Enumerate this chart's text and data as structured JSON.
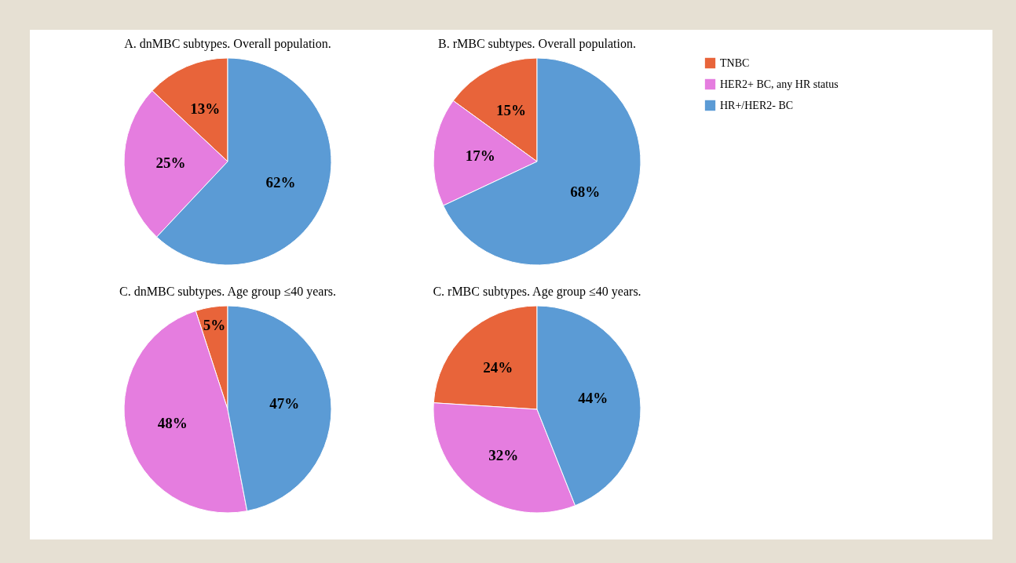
{
  "chart_data": [
    {
      "type": "pie",
      "title": "A. dnMBC subtypes. Overall population.",
      "categories": [
        "TNBC",
        "HER2+ BC, any HR status",
        "HR+/HER2- BC"
      ],
      "values": [
        13,
        25,
        62
      ],
      "colors": [
        "#e8643a",
        "#e57ddf",
        "#5b9bd5"
      ],
      "value_labels": [
        "13%",
        "25%",
        "62%"
      ],
      "legend": "right"
    },
    {
      "type": "pie",
      "title": "B. rMBC subtypes. Overall population.",
      "categories": [
        null,
        null,
        null
      ],
      "values": [
        15,
        17,
        68
      ],
      "colors": [
        "#e8643a",
        "#e57ddf",
        "#5b9bd5"
      ],
      "value_labels": [
        "15%",
        "17%",
        "68%"
      ]
    },
    {
      "type": "pie",
      "title": "C. dnMBC subtypes. Age group ≤40 years.",
      "categories": [
        null,
        null,
        null
      ],
      "values": [
        5,
        48,
        47
      ],
      "colors": [
        "#e8643a",
        "#e57ddf",
        "#5b9bd5"
      ],
      "value_labels": [
        "5%",
        "48%",
        "47%"
      ]
    },
    {
      "type": "pie",
      "title": "C. rMBC subtypes. Age group ≤40 years.",
      "categories": [
        null,
        null,
        null
      ],
      "values": [
        24,
        32,
        44
      ],
      "colors": [
        "#e8643a",
        "#e57ddf",
        "#5b9bd5"
      ],
      "value_labels": [
        "24%",
        "32%",
        "44%"
      ]
    }
  ]
}
